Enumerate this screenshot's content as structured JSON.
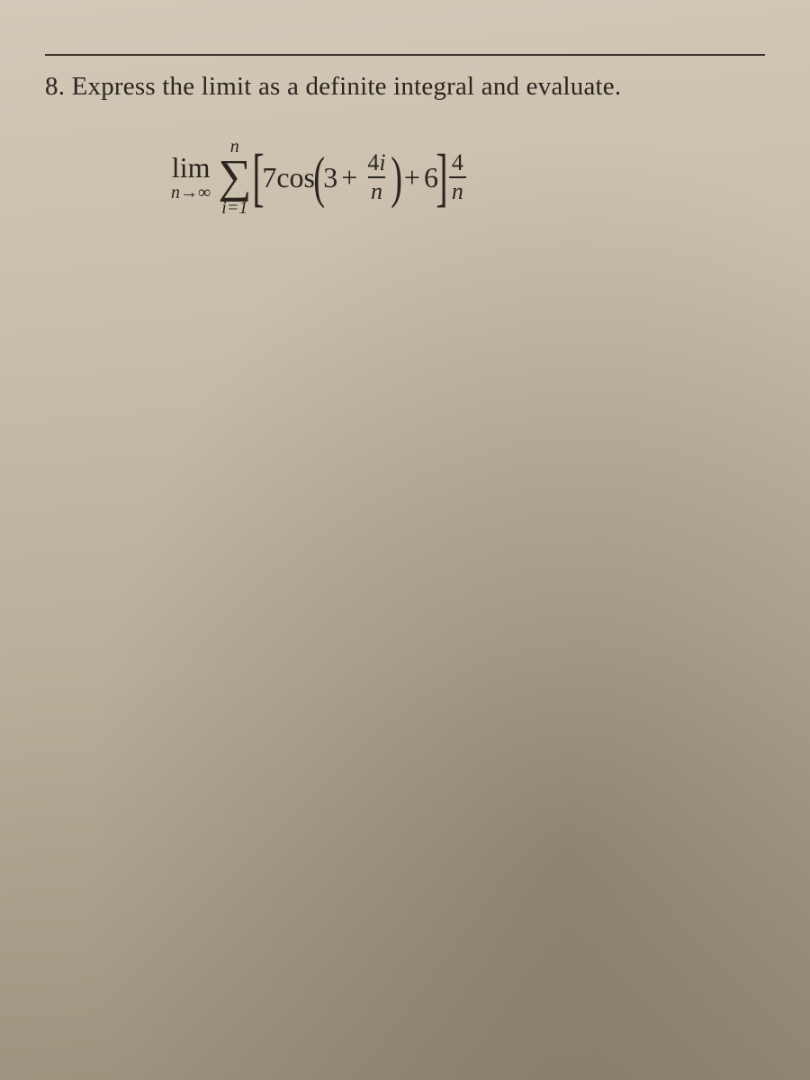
{
  "problem": {
    "number": "8.",
    "statement": "Express the limit as a definite integral and evaluate."
  },
  "math": {
    "lim_label": "lim",
    "lim_sub_left": "n",
    "lim_sub_arrow": "→",
    "lim_sub_right": "∞",
    "sum_upper": "n",
    "sum_lower": "i=1",
    "coef1": "7",
    "func": "cos",
    "inner_const": "3",
    "plus1": "+",
    "frac1_num_coef": "4",
    "frac1_num_var": "i",
    "frac1_den": "n",
    "plus2": "+",
    "const2": "6",
    "frac2_num": "4",
    "frac2_den": "n"
  },
  "style": {
    "text_color": "#2a2520",
    "bg_start": "#d4c9b8",
    "bg_end": "#9a8f7a",
    "statement_fontsize": 29,
    "math_fontsize": 32
  }
}
